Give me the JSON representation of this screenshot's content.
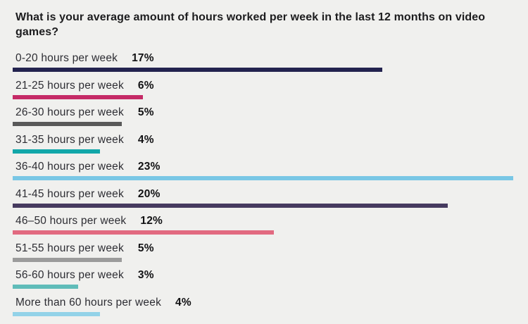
{
  "chart_data": {
    "type": "bar",
    "orientation": "horizontal",
    "title": "What is your average amount of hours worked per week in the last 12 months on video games?",
    "categories": [
      "0-20 hours per week",
      "21-25 hours per week",
      "26-30 hours per week",
      "31-35 hours per week",
      "36-40 hours per week",
      "41-45 hours per week",
      "46–50 hours per week",
      "51-55 hours per week",
      "56-60 hours per week",
      "More than 60 hours per week"
    ],
    "values": [
      17,
      6,
      5,
      4,
      23,
      20,
      12,
      5,
      3,
      4
    ],
    "value_labels": [
      "17%",
      "6%",
      "5%",
      "4%",
      "23%",
      "20%",
      "12%",
      "5%",
      "3%",
      "4%"
    ],
    "colors": [
      "#23234f",
      "#c52a66",
      "#595959",
      "#12a7a9",
      "#79c7e5",
      "#463a5f",
      "#e26a80",
      "#9b9b9b",
      "#5fbcb9",
      "#93d2e8"
    ],
    "xlabel": "",
    "ylabel": "",
    "xlim": [
      0,
      24
    ],
    "grid": false,
    "legend": "none",
    "background_color": "#f0f0ee",
    "title_color": "#1c1c1e",
    "label_color": "#2d2d33",
    "value_label_color": "#121214"
  }
}
